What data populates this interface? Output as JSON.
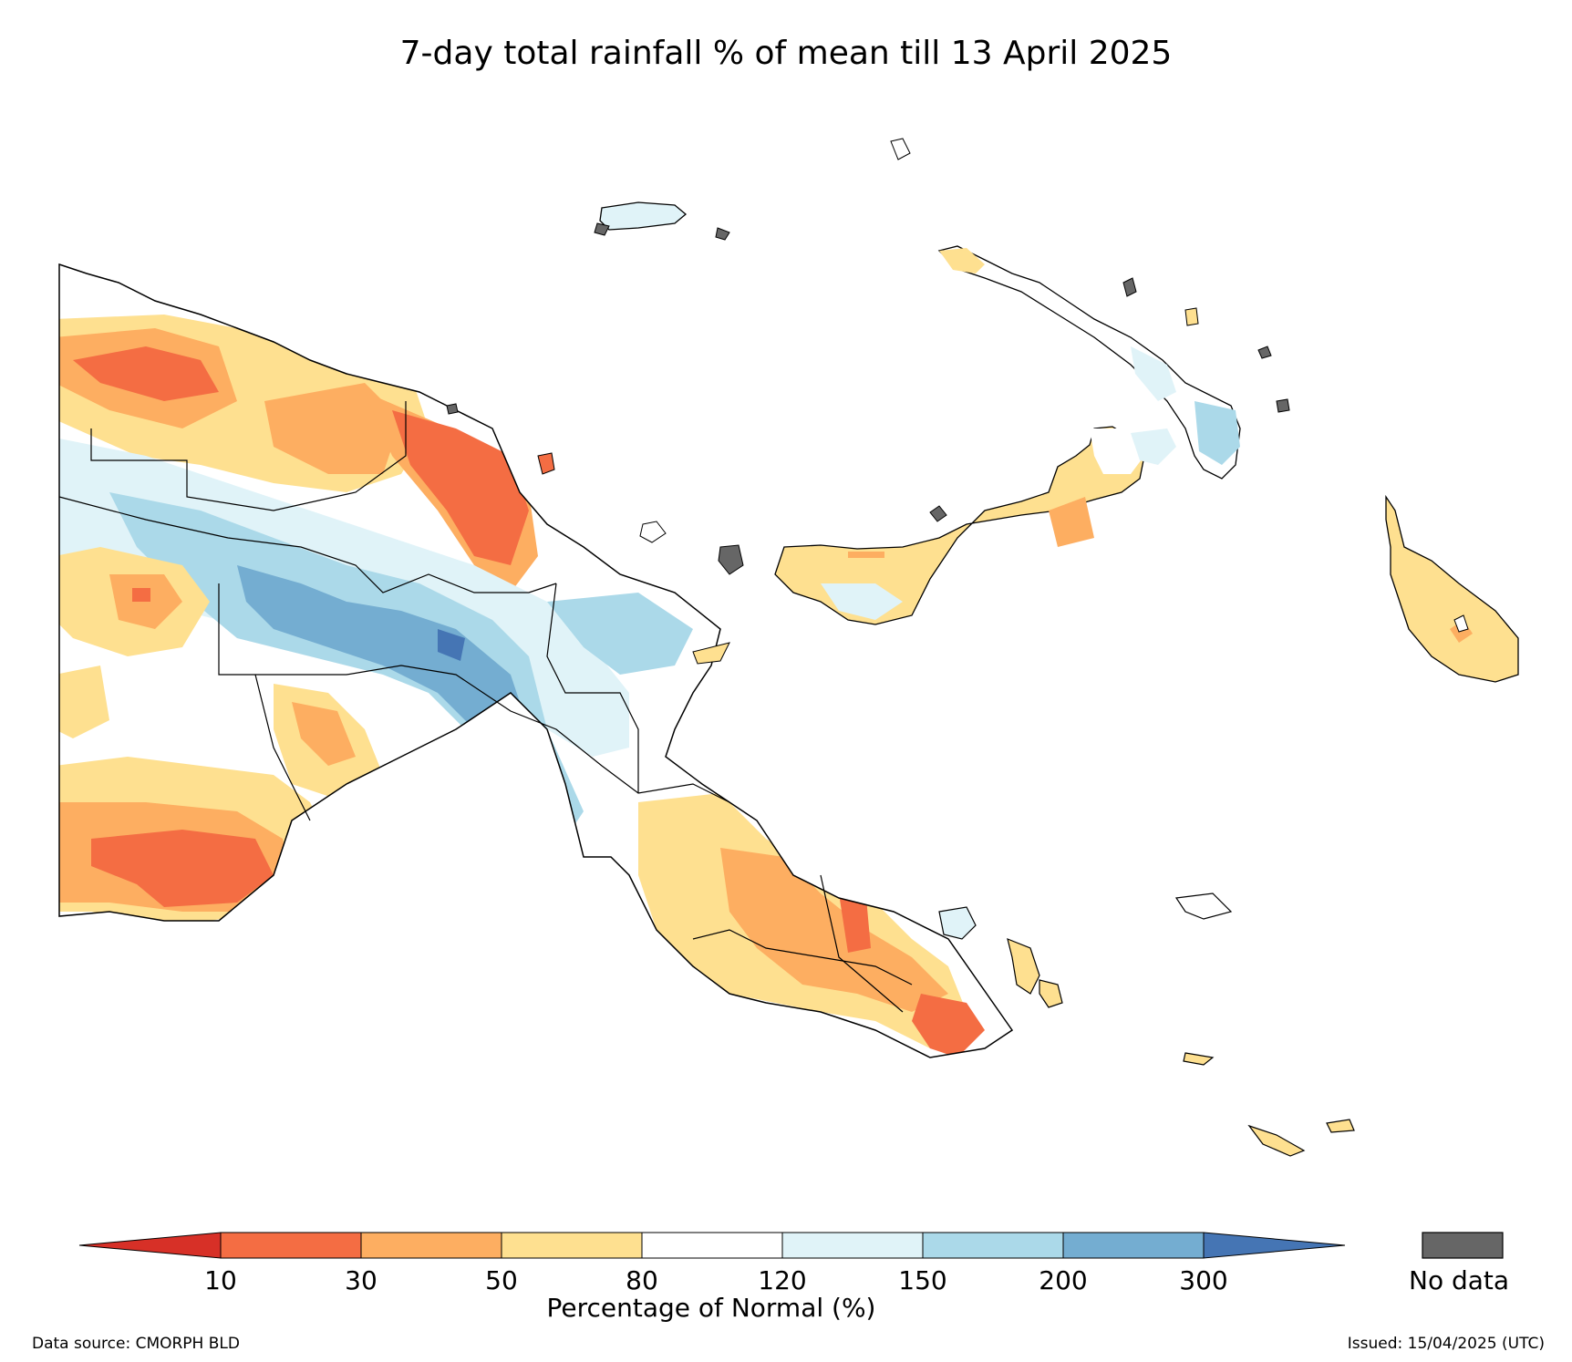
{
  "title": "7-day total rainfall % of mean till 13 April 2025",
  "colorbar": {
    "label": "Percentage of Normal (%)",
    "ticks": [
      "10",
      "30",
      "50",
      "80",
      "120",
      "150",
      "200",
      "300"
    ],
    "colors": [
      "#d73027",
      "#f46d43",
      "#fdae61",
      "#fee090",
      "#ffffff",
      "#e0f3f8",
      "#abd9e9",
      "#74add1",
      "#4575b4"
    ],
    "nodata_color": "#666666",
    "nodata_label": "No data"
  },
  "footer": {
    "source": "Data source: CMORPH BLD",
    "issued": "Issued: 15/04/2025 (UTC)"
  }
}
